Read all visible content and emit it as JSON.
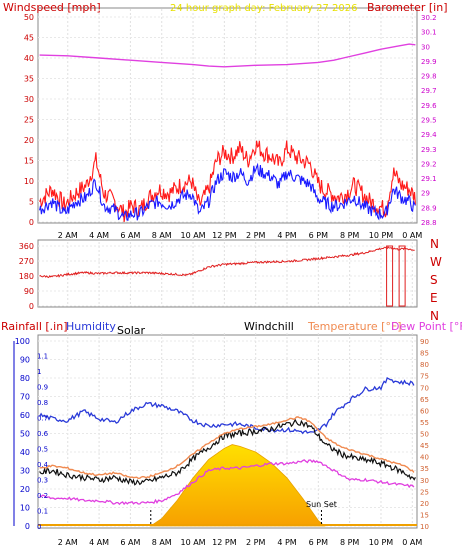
{
  "header": {
    "left_title": "Windspeed [mph]",
    "center_title": "24 hour graph day: February 27 2026",
    "right_title": "Barometer [in]"
  },
  "bottom_header": {
    "rainfall": "Rainfall [.in]",
    "humidity": "Humidity",
    "solar": "Solar",
    "windchill": "Windchill",
    "temperature": "Temperature [°F]",
    "dewpoint": "Dew Point [°F]"
  },
  "colors": {
    "wind_avg": "#1a1aff",
    "wind_gust": "#ff1a1a",
    "barometer": "#e040e0",
    "direction": "#e02020",
    "humidity": "#2a3ad8",
    "temperature": "#f08a50",
    "dewpoint": "#e040e0",
    "windchill": "#101010",
    "solar": "#ffd000",
    "axis_left": "#cc0000",
    "axis_right": "#cc00cc",
    "rain_axis": "#0000cc",
    "header_center": "#e8e000"
  },
  "chart_data": [
    {
      "type": "line",
      "name": "wind_and_barometer",
      "x_ticks": [
        "2 AM",
        "4 AM",
        "6 AM",
        "8 AM",
        "10 AM",
        "12 PM",
        "2 PM",
        "4 PM",
        "6 PM",
        "8 PM",
        "10 PM",
        "0 AM"
      ],
      "x_hours": [
        2,
        4,
        6,
        8,
        10,
        12,
        14,
        16,
        18,
        20,
        22,
        24
      ],
      "xlim": [
        0.1,
        24.3
      ],
      "y_left": {
        "ylim": [
          0,
          50
        ],
        "ticks": [
          0,
          5,
          10,
          15,
          20,
          25,
          30,
          35,
          40,
          45,
          50
        ]
      },
      "y_right": {
        "ylim": [
          28.8,
          30.2
        ],
        "ticks": [
          "28.8",
          "28.9",
          "29",
          "29.1",
          "29.2",
          "29.3",
          "29.4",
          "29.5",
          "29.6",
          "29.7",
          "29.8",
          "29.9",
          "30",
          "30.1",
          "30.2"
        ]
      },
      "series": [
        {
          "key": "gust",
          "x": [
            0.2,
            1,
            1.8,
            2.5,
            3.2,
            3.8,
            4.3,
            5,
            5.6,
            6.1,
            6.6,
            7.2,
            7.8,
            8.5,
            9.2,
            9.9,
            10.4,
            11,
            11.5,
            12,
            12.5,
            13,
            13.5,
            14,
            14.5,
            15,
            15.5,
            16,
            16.5,
            17,
            17.5,
            17.9,
            18.3,
            18.8,
            19.3,
            19.8,
            20.3,
            20.8,
            21.3,
            21.8,
            22.3,
            22.8,
            23.3,
            23.8,
            24.2
          ],
          "y": [
            5,
            8,
            4,
            7,
            9,
            15,
            7,
            5,
            2,
            4,
            3,
            6,
            8,
            7,
            9,
            10,
            4,
            8,
            15,
            17,
            16,
            18,
            15,
            19,
            17,
            16,
            14,
            18,
            16,
            15,
            14,
            10,
            8,
            7,
            6,
            7,
            9,
            7,
            5,
            4,
            3,
            12,
            9,
            8,
            6
          ]
        },
        {
          "key": "avg",
          "x": [
            0.2,
            1,
            1.8,
            2.5,
            3.2,
            3.8,
            4.3,
            5,
            5.6,
            6.1,
            6.6,
            7.2,
            7.8,
            8.5,
            9.2,
            9.9,
            10.4,
            11,
            11.5,
            12,
            12.5,
            13,
            13.5,
            14,
            14.5,
            15,
            15.5,
            16,
            16.5,
            17,
            17.5,
            17.9,
            18.3,
            18.8,
            19.3,
            19.8,
            20.3,
            20.8,
            21.3,
            21.8,
            22.3,
            22.8,
            23.3,
            23.8,
            24.2
          ],
          "y": [
            3,
            5,
            2,
            5,
            6,
            10,
            4,
            3,
            1,
            2,
            2,
            4,
            5,
            4,
            6,
            7,
            2,
            5,
            10,
            12,
            11,
            12,
            10,
            13,
            12,
            11,
            9,
            12,
            11,
            10,
            9,
            6,
            5,
            4,
            4,
            5,
            6,
            4,
            3,
            2,
            2,
            8,
            6,
            5,
            3
          ]
        },
        {
          "key": "barometer",
          "x": [
            0.2,
            2,
            4,
            6,
            8,
            10,
            11,
            12,
            13,
            14,
            16,
            18,
            19,
            20,
            21,
            22,
            23,
            23.8,
            24.2
          ],
          "y": [
            29.94,
            29.935,
            29.92,
            29.905,
            29.89,
            29.875,
            29.865,
            29.86,
            29.865,
            29.87,
            29.875,
            29.89,
            29.905,
            29.93,
            29.955,
            29.98,
            30.0,
            30.015,
            30.01
          ]
        }
      ]
    },
    {
      "type": "line",
      "name": "wind_direction",
      "y_ticks": [
        0,
        90,
        180,
        270,
        360
      ],
      "ylim": [
        0,
        360
      ],
      "compass_labels": [
        "N",
        "W",
        "S",
        "E",
        "N"
      ],
      "series": [
        {
          "key": "direction",
          "x": [
            0.2,
            1,
            2,
            3,
            4,
            5,
            6,
            7,
            8,
            9,
            9.6,
            10,
            10.5,
            11,
            12,
            13,
            14,
            15,
            16,
            17,
            18,
            19,
            20,
            21,
            22,
            22.6,
            23.1,
            23.6,
            24.2
          ],
          "y": [
            180,
            175,
            190,
            200,
            195,
            200,
            198,
            200,
            195,
            190,
            185,
            195,
            215,
            235,
            250,
            255,
            262,
            265,
            268,
            275,
            285,
            295,
            305,
            320,
            345,
            350,
            340,
            345,
            335
          ]
        }
      ]
    },
    {
      "type": "line",
      "name": "humidity_temperature_solar",
      "y_left": {
        "ylim": [
          0,
          100
        ],
        "ticks": [
          0,
          10,
          20,
          30,
          40,
          50,
          60,
          70,
          80,
          90,
          100
        ]
      },
      "rain_ticks": [
        "0",
        "0.1",
        "0.2",
        "0.3",
        "0.4",
        "0.5",
        "0.6",
        "0.7",
        "0.8",
        "0.9",
        "1",
        "1.1"
      ],
      "y_right": {
        "ylim": [
          10,
          90
        ],
        "ticks": [
          10,
          15,
          20,
          25,
          30,
          35,
          40,
          45,
          50,
          55,
          60,
          65,
          70,
          75,
          80,
          85,
          90
        ]
      },
      "annotations": [
        {
          "label": "Sun Set",
          "x": 18.2
        }
      ],
      "series": [
        {
          "key": "humidity",
          "x": [
            0.2,
            1,
            2,
            3,
            4,
            5,
            6,
            7,
            8,
            9,
            10,
            11,
            12,
            13,
            14,
            15,
            16,
            17,
            17.7,
            18.5,
            19,
            20,
            21,
            22,
            22.5,
            23,
            24.2
          ],
          "y": [
            60,
            58,
            57,
            62,
            58,
            56,
            62,
            66,
            65,
            62,
            57,
            54,
            55,
            55,
            53,
            52,
            52,
            51,
            50,
            55,
            61,
            68,
            74,
            75,
            80,
            78,
            77
          ]
        },
        {
          "key": "temperature",
          "x": [
            0.2,
            1,
            2,
            3,
            4,
            5,
            6,
            7,
            8,
            9,
            10,
            11,
            12,
            13,
            14,
            15,
            16,
            16.8,
            17.5,
            18.5,
            19.5,
            20.5,
            21.5,
            22.5,
            23.5,
            24.2
          ],
          "y": [
            35,
            36,
            35,
            33,
            32,
            33,
            31,
            31,
            33,
            36,
            41,
            46,
            50,
            52,
            53,
            54,
            56,
            57,
            55,
            48,
            44,
            42,
            40,
            38,
            36,
            33
          ]
        },
        {
          "key": "windchill",
          "x": [
            0.2,
            1,
            2,
            3,
            4,
            5,
            6,
            7,
            8,
            9,
            10,
            11,
            12,
            13,
            14,
            15,
            16,
            16.8,
            17.5,
            18.5,
            19.5,
            20.5,
            21.5,
            22.5,
            23.5,
            24.2
          ],
          "y": [
            33,
            34,
            32,
            31,
            30,
            31,
            29,
            29,
            31,
            33,
            39,
            44,
            49,
            50,
            51,
            52,
            54,
            55,
            53,
            45,
            41,
            39,
            38,
            36,
            33,
            30
          ]
        },
        {
          "key": "dewpoint",
          "x": [
            0.2,
            1,
            2,
            3,
            4,
            5,
            6,
            7,
            8,
            9,
            10,
            11,
            12,
            13,
            14,
            15,
            16,
            17,
            18,
            19,
            20,
            21,
            22,
            23,
            24.2
          ],
          "y": [
            23,
            22,
            22,
            21,
            21,
            20,
            20,
            20,
            21,
            24,
            29,
            34,
            35,
            35,
            36,
            37,
            37,
            38,
            38,
            34,
            30,
            30,
            29,
            28,
            27
          ]
        },
        {
          "key": "solar",
          "x": [
            7.3,
            8,
            9,
            10,
            11,
            12,
            12.5,
            13,
            14,
            15,
            16,
            17,
            18,
            18.4
          ],
          "y": [
            0,
            4,
            14,
            26,
            36,
            42,
            44,
            43,
            40,
            34,
            26,
            15,
            3,
            0
          ]
        }
      ]
    }
  ]
}
